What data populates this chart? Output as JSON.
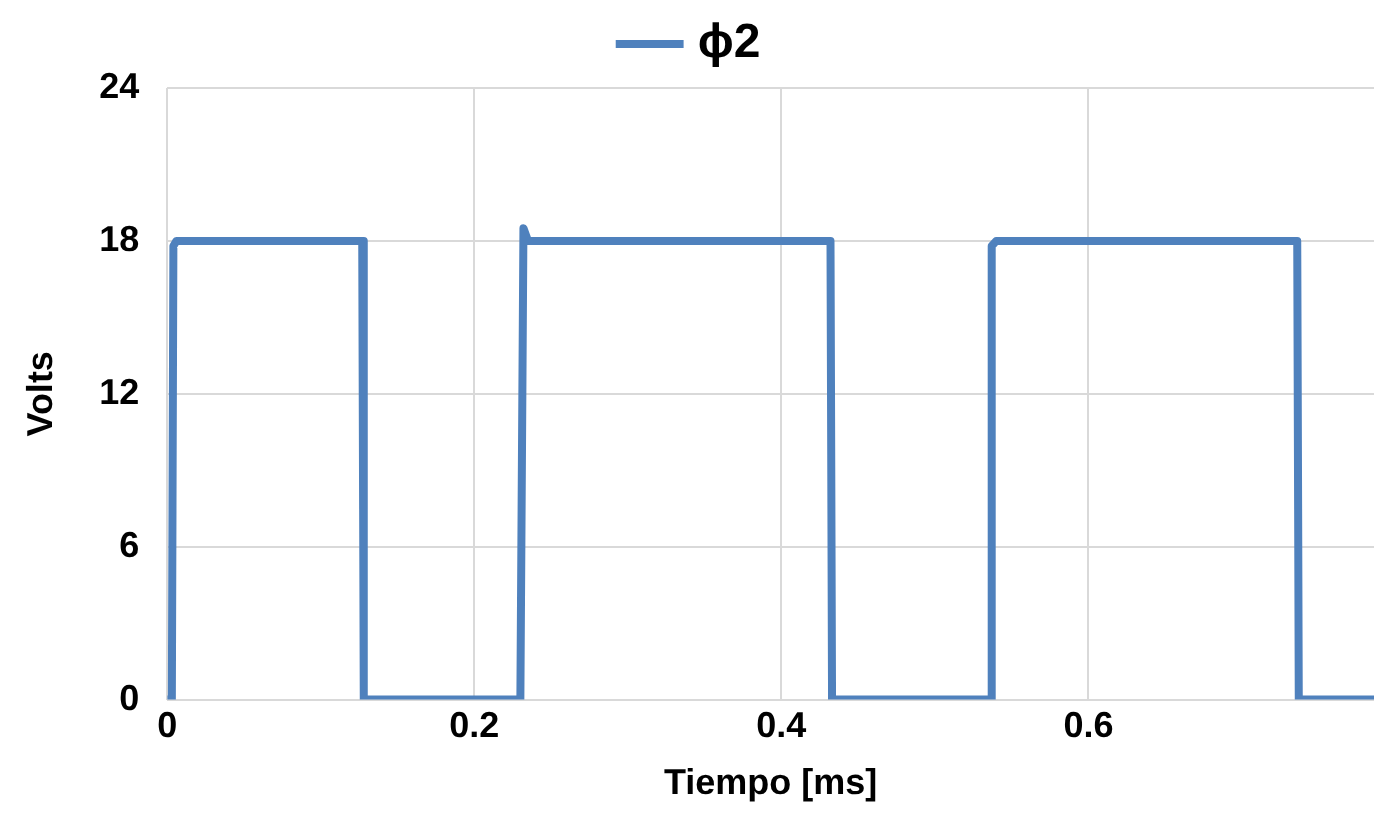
{
  "chart_data": {
    "type": "line",
    "xlabel": "Tiempo [ms]",
    "ylabel": "Volts",
    "series": [
      {
        "name": "ϕ2",
        "color": "#4f81bd",
        "x": [
          0,
          0.003,
          0.004,
          0.006,
          0.127,
          0.128,
          0.23,
          0.232,
          0.235,
          0.432,
          0.433,
          0.536,
          0.537,
          0.54,
          0.736,
          0.737,
          0.786
        ],
        "values": [
          0,
          0,
          17.8,
          18,
          18,
          0,
          0,
          18.5,
          18,
          18,
          0,
          0,
          17.8,
          18,
          18,
          0,
          0
        ]
      }
    ],
    "xlim": [
      0,
      0.786
    ],
    "xticks": [
      0,
      0.2,
      0.4,
      0.6
    ],
    "ylim": [
      0,
      24
    ],
    "yticks": [
      0,
      6,
      12,
      18,
      24
    ],
    "grid": true,
    "legend": "top",
    "marker": "none",
    "line_style": "solid"
  }
}
